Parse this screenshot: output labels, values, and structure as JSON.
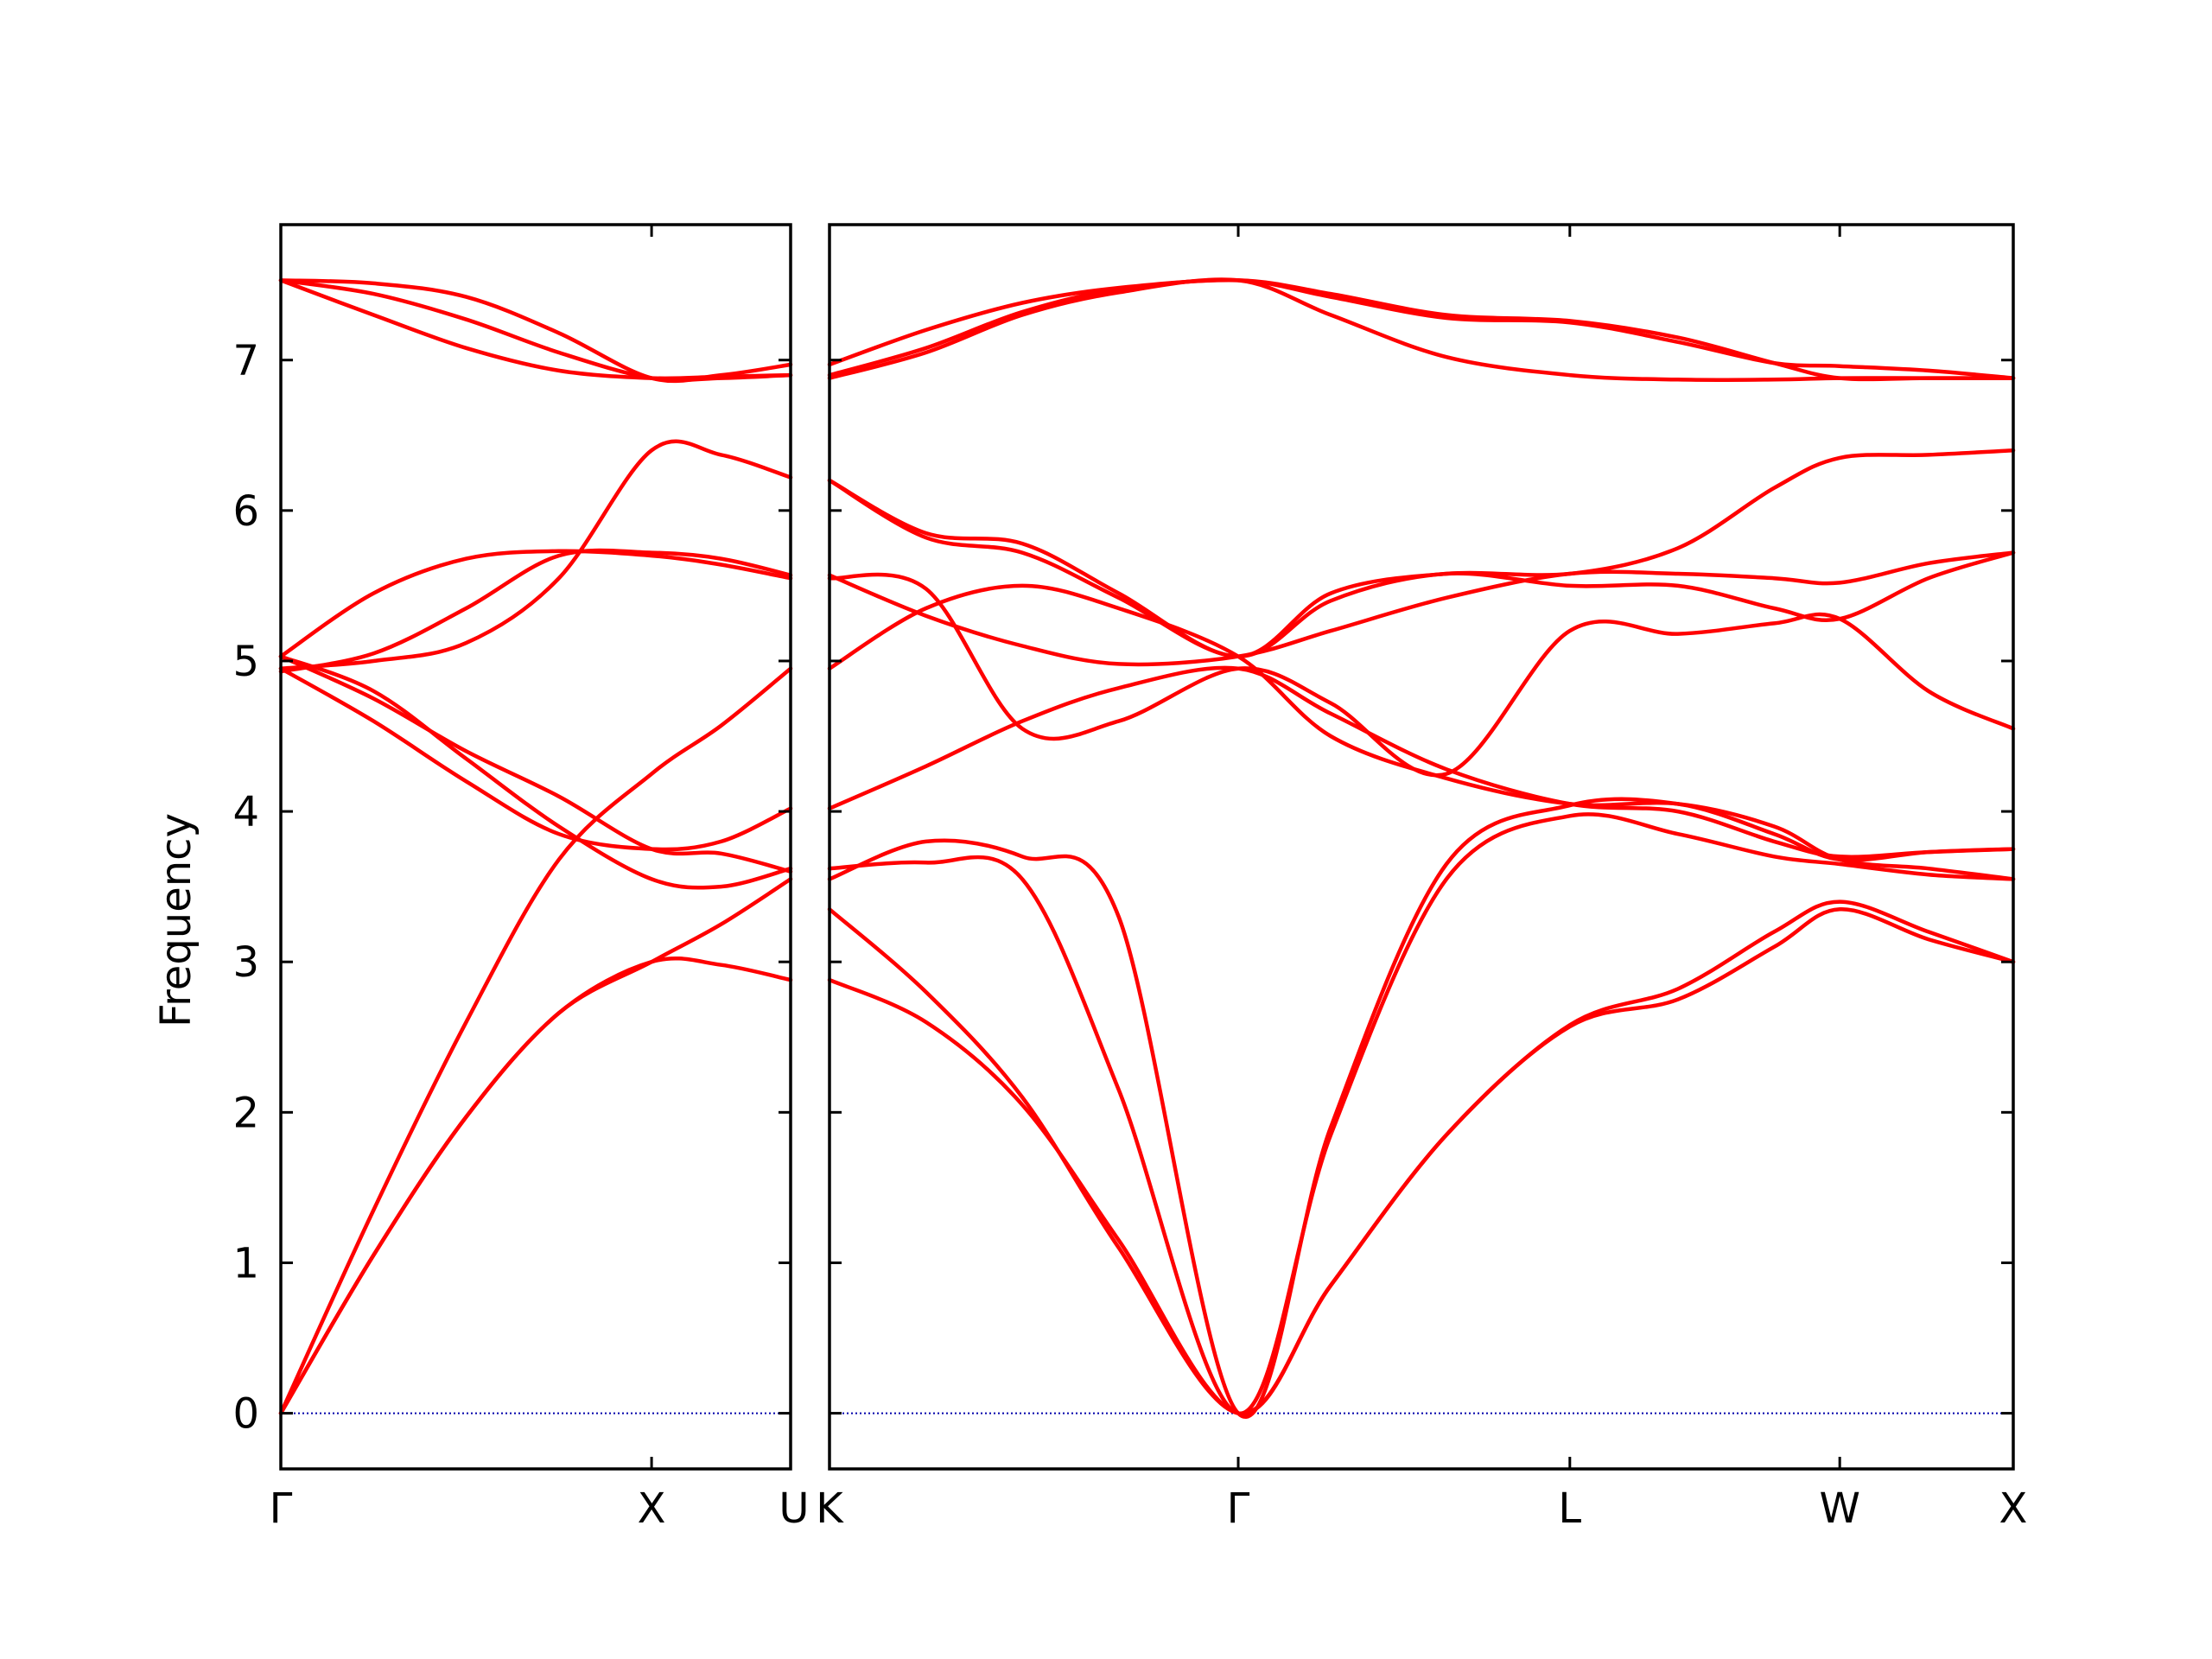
{
  "chart_data": {
    "type": "line",
    "ylabel": "Frequency",
    "xlabel": "",
    "ylim": [
      -0.37,
      7.9
    ],
    "yticks": [
      0,
      1,
      2,
      3,
      4,
      5,
      6,
      7
    ],
    "grid": false,
    "line_color": "#ff0000",
    "zero_line_color": "#0000aa",
    "panels": [
      {
        "xlim": [
          0,
          1.375
        ],
        "ticks": [
          {
            "x": 0,
            "label": "Γ"
          },
          {
            "x": 1.0,
            "label": "X"
          },
          {
            "x": 1.375,
            "label": "U"
          }
        ],
        "series": [
          {
            "x": [
              0,
              0.25,
              0.5,
              0.75,
              1.0,
              1.1875,
              1.375
            ],
            "y": [
              0,
              1.05,
              1.97,
              2.66,
              3.0,
              2.98,
              2.88
            ]
          },
          {
            "x": [
              0,
              0.25,
              0.5,
              0.75,
              1.0,
              1.1875,
              1.375
            ],
            "y": [
              0,
              1.35,
              2.6,
              3.68,
              4.25,
              4.57,
              4.95
            ]
          },
          {
            "x": [
              0,
              0.25,
              0.5,
              0.75,
              1.0,
              1.1875,
              1.375
            ],
            "y": [
              4.95,
              4.6,
              4.2,
              3.85,
              3.75,
              3.8,
              4.02
            ]
          },
          {
            "x": [
              0,
              0.25,
              0.5,
              0.75,
              1.0,
              1.1875,
              1.375
            ],
            "y": [
              5.03,
              4.8,
              4.35,
              3.9,
              3.55,
              3.5,
              3.62
            ]
          },
          {
            "x": [
              0,
              0.25,
              0.5,
              0.75,
              1.0,
              1.1875,
              1.375
            ],
            "y": [
              4.93,
              5.05,
              5.35,
              5.7,
              5.72,
              5.68,
              5.57
            ]
          },
          {
            "x": [
              0,
              0.25,
              0.5,
              0.75,
              1.0,
              1.1875,
              1.375
            ],
            "y": [
              5.03,
              5.45,
              5.68,
              5.73,
              5.7,
              5.64,
              5.55
            ]
          },
          {
            "x": [
              0,
              0.25,
              0.5,
              0.75,
              1.0,
              1.1875,
              1.375
            ],
            "y": [
              7.53,
              7.44,
              7.27,
              7.05,
              6.88,
              6.88,
              6.9
            ]
          },
          {
            "x": [
              0,
              0.25,
              0.5,
              0.75,
              1.0,
              1.1875,
              1.375
            ],
            "y": [
              7.53,
              7.51,
              7.42,
              7.18,
              6.88,
              6.9,
              6.97
            ]
          },
          {
            "x": [
              0,
              0.25,
              0.5,
              0.75,
              1.0,
              1.1875,
              1.375
            ],
            "y": [
              7.53,
              7.3,
              7.08,
              6.93,
              6.88,
              6.89,
              6.9
            ]
          },
          {
            "x": [
              0,
              0.25,
              0.5,
              0.75,
              1.0,
              1.1875,
              1.375
            ],
            "y": [
              5.03,
              4.75,
              4.4,
              4.1,
              3.75,
              3.72,
              3.6
            ]
          },
          {
            "x": [
              0,
              0.25,
              0.5,
              0.75,
              1.0,
              1.1875,
              1.375
            ],
            "y": [
              4.95,
              5.0,
              5.12,
              5.55,
              6.4,
              6.37,
              6.22
            ]
          },
          {
            "x": [
              0,
              0.25,
              0.5,
              0.75,
              1.0,
              1.1875,
              1.375
            ],
            "y": [
              0,
              1.05,
              1.97,
              2.66,
              3.0,
              3.25,
              3.55
            ]
          }
        ]
      },
      {
        "xlim": [
          0,
          3.07
        ],
        "ticks": [
          {
            "x": 0,
            "label": "K"
          },
          {
            "x": 1.06,
            "label": "Γ"
          },
          {
            "x": 1.92,
            "label": "L"
          },
          {
            "x": 2.62,
            "label": "W"
          },
          {
            "x": 3.07,
            "label": "X"
          }
        ],
        "series": [
          {
            "x": [
              0,
              0.25,
              0.5,
              0.75,
              1.06,
              1.3,
              1.6,
              1.92,
              2.2,
              2.45,
              2.62,
              2.85,
              3.07
            ],
            "y": [
              2.88,
              2.6,
              2.05,
              1.15,
              0,
              0.85,
              1.85,
              2.57,
              2.75,
              3.1,
              3.35,
              3.15,
              3.0
            ]
          },
          {
            "x": [
              0,
              0.25,
              0.5,
              0.75,
              1.06,
              1.3,
              1.6,
              1.92,
              2.2,
              2.45,
              2.62,
              2.85,
              3.07
            ],
            "y": [
              3.35,
              2.8,
              2.1,
              1.1,
              0,
              0.85,
              1.85,
              2.58,
              2.82,
              3.2,
              3.4,
              3.2,
              3.0
            ]
          },
          {
            "x": [
              0,
              0.25,
              0.5,
              0.75,
              1.06,
              1.3,
              1.6,
              1.92,
              2.2,
              2.45,
              2.62,
              2.85,
              3.07
            ],
            "y": [
              3.62,
              3.66,
              3.55,
              2.15,
              0,
              1.85,
              3.55,
              3.97,
              3.85,
              3.7,
              3.65,
              3.58,
              3.55
            ]
          },
          {
            "x": [
              0,
              0.25,
              0.5,
              0.75,
              1.06,
              1.3,
              1.6,
              1.92,
              2.2,
              2.45,
              2.62,
              2.85,
              3.07
            ],
            "y": [
              3.55,
              3.8,
              3.7,
              3.3,
              0,
              1.9,
              3.65,
              4.04,
              4.05,
              3.85,
              3.68,
              3.73,
              3.75
            ]
          },
          {
            "x": [
              0,
              0.25,
              0.5,
              0.75,
              1.06,
              1.3,
              1.6,
              1.92,
              2.2,
              2.45,
              2.62,
              2.85,
              3.07
            ],
            "y": [
              4.02,
              4.3,
              4.6,
              4.82,
              4.95,
              4.65,
              4.28,
              4.05,
              4.0,
              3.8,
              3.7,
              3.73,
              3.75
            ]
          },
          {
            "x": [
              0,
              0.25,
              0.5,
              0.75,
              1.06,
              1.3,
              1.6,
              1.92,
              2.2,
              2.45,
              2.62,
              2.85,
              3.07
            ],
            "y": [
              4.95,
              5.35,
              5.5,
              5.35,
              5.03,
              4.5,
              4.22,
              4.05,
              4.05,
              3.9,
              3.68,
              3.62,
              3.55
            ]
          },
          {
            "x": [
              0,
              0.25,
              0.5,
              0.75,
              1.06,
              1.3,
              1.6,
              1.92,
              2.2,
              2.45,
              2.62,
              2.85,
              3.07
            ],
            "y": [
              5.55,
              5.48,
              4.55,
              4.6,
              4.95,
              4.72,
              4.25,
              5.2,
              5.18,
              5.25,
              5.28,
              4.8,
              4.55
            ]
          },
          {
            "x": [
              0,
              0.25,
              0.5,
              0.75,
              1.06,
              1.3,
              1.6,
              1.92,
              2.2,
              2.45,
              2.62,
              2.85,
              3.07
            ],
            "y": [
              5.57,
              5.3,
              5.1,
              4.98,
              5.03,
              5.2,
              5.42,
              5.58,
              5.58,
              5.55,
              5.52,
              5.65,
              5.72
            ]
          },
          {
            "x": [
              0,
              0.25,
              0.5,
              0.75,
              1.06,
              1.3,
              1.6,
              1.92,
              2.2,
              2.45,
              2.62,
              2.85,
              3.07
            ],
            "y": [
              6.2,
              5.82,
              5.72,
              5.42,
              5.03,
              5.4,
              5.58,
              5.5,
              5.5,
              5.35,
              5.28,
              5.55,
              5.72
            ]
          },
          {
            "x": [
              0,
              0.25,
              0.5,
              0.75,
              1.06,
              1.3,
              1.6,
              1.92,
              2.2,
              2.45,
              2.62,
              2.85,
              3.07
            ],
            "y": [
              6.88,
              7.05,
              7.3,
              7.45,
              7.53,
              7.3,
              7.02,
              6.9,
              6.87,
              6.87,
              6.88,
              6.88,
              6.88
            ]
          },
          {
            "x": [
              0,
              0.25,
              0.5,
              0.75,
              1.06,
              1.3,
              1.6,
              1.92,
              2.2,
              2.45,
              2.62,
              2.85,
              3.07
            ],
            "y": [
              6.9,
              7.08,
              7.32,
              7.47,
              7.53,
              7.42,
              7.28,
              7.25,
              7.12,
              6.98,
              6.96,
              6.93,
              6.88
            ]
          },
          {
            "x": [
              0,
              0.25,
              0.5,
              0.75,
              1.06,
              1.3,
              1.6,
              1.92,
              2.2,
              2.45,
              2.62,
              2.85,
              3.07
            ],
            "y": [
              6.97,
              7.2,
              7.38,
              7.48,
              7.53,
              7.44,
              7.3,
              7.26,
              7.15,
              6.98,
              6.88,
              6.88,
              6.88
            ]
          },
          {
            "x": [
              0,
              0.25,
              0.5,
              0.75,
              1.06,
              1.3,
              1.6,
              1.92,
              2.2,
              2.45,
              2.62,
              2.85,
              3.07
            ],
            "y": [
              6.2,
              5.85,
              5.78,
              5.45,
              5.03,
              5.45,
              5.58,
              5.58,
              5.75,
              6.15,
              6.35,
              6.37,
              6.4
            ]
          }
        ]
      }
    ]
  }
}
